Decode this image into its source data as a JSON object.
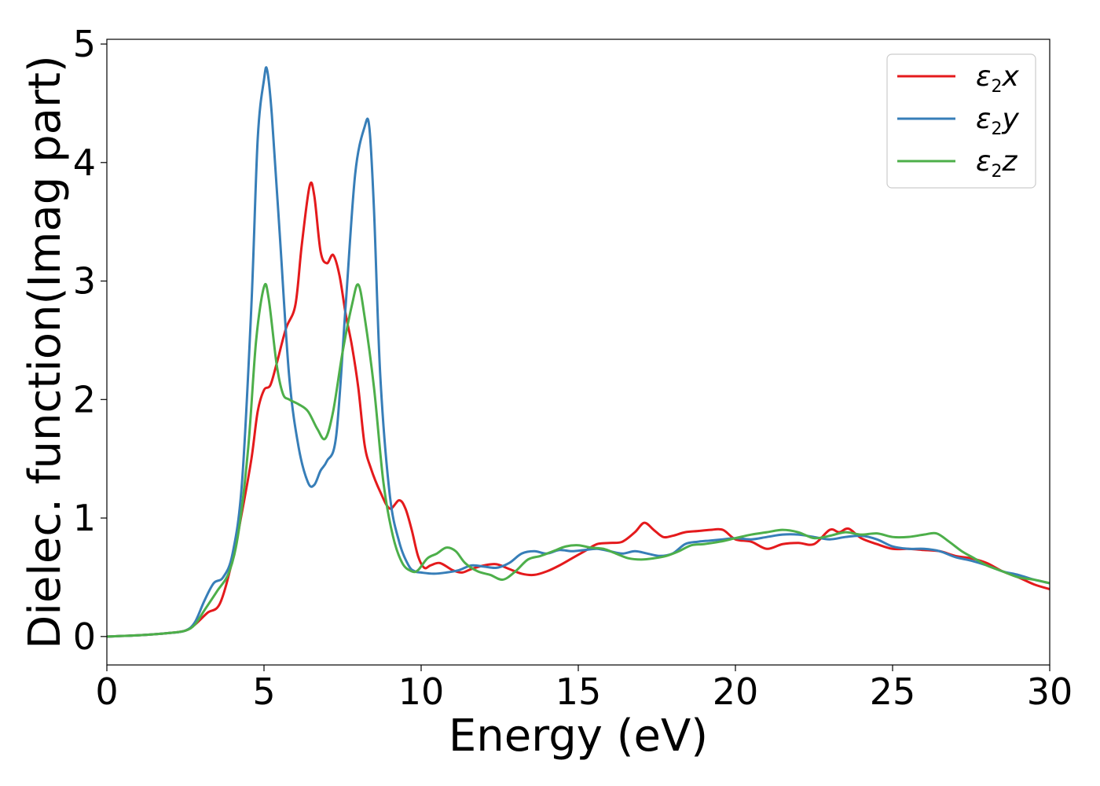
{
  "chart_data": {
    "type": "line",
    "title": "",
    "xlabel": "Energy (eV)",
    "ylabel": "Dielec. function(Imag part)",
    "xlim": [
      0,
      30
    ],
    "ylim": [
      -0.24,
      5.04
    ],
    "xticks": [
      0,
      5,
      10,
      15,
      20,
      25,
      30
    ],
    "yticks": [
      0,
      1,
      2,
      3,
      4,
      5
    ],
    "grid": false,
    "legend_position": "top-right",
    "series": [
      {
        "name": "ε2x",
        "legend_base": "ε",
        "legend_sub": "2",
        "legend_tail": "x",
        "color": "#e41a1c",
        "x": [
          0,
          1,
          2,
          2.5,
          2.8,
          3.2,
          3.6,
          4.0,
          4.3,
          4.6,
          4.8,
          5.0,
          5.2,
          5.4,
          5.7,
          6.0,
          6.2,
          6.45,
          6.6,
          6.8,
          7.0,
          7.2,
          7.4,
          7.6,
          7.8,
          8.0,
          8.2,
          8.4,
          8.7,
          9.0,
          9.3,
          9.5,
          9.7,
          9.9,
          10.1,
          10.3,
          10.6,
          11.0,
          11.3,
          11.6,
          12.0,
          12.4,
          12.8,
          13.2,
          13.6,
          14.0,
          14.4,
          14.8,
          15.2,
          15.6,
          16.0,
          16.4,
          16.8,
          17.1,
          17.4,
          17.7,
          18.0,
          18.4,
          18.8,
          19.2,
          19.6,
          20.0,
          20.5,
          21.0,
          21.5,
          22.0,
          22.5,
          23.0,
          23.3,
          23.6,
          24.0,
          24.5,
          25.0,
          25.5,
          26.0,
          26.5,
          27.0,
          27.5,
          28.0,
          28.5,
          29.0,
          29.5,
          30.0
        ],
        "y": [
          0.0,
          0.01,
          0.03,
          0.05,
          0.1,
          0.2,
          0.28,
          0.65,
          1.05,
          1.5,
          1.9,
          2.08,
          2.12,
          2.3,
          2.6,
          2.8,
          3.3,
          3.8,
          3.72,
          3.25,
          3.15,
          3.22,
          3.05,
          2.72,
          2.45,
          2.1,
          1.62,
          1.42,
          1.22,
          1.08,
          1.15,
          1.08,
          0.9,
          0.68,
          0.58,
          0.6,
          0.62,
          0.56,
          0.54,
          0.57,
          0.6,
          0.61,
          0.57,
          0.53,
          0.52,
          0.55,
          0.6,
          0.66,
          0.72,
          0.78,
          0.79,
          0.8,
          0.88,
          0.96,
          0.9,
          0.84,
          0.85,
          0.88,
          0.89,
          0.9,
          0.9,
          0.82,
          0.8,
          0.74,
          0.78,
          0.79,
          0.78,
          0.9,
          0.88,
          0.91,
          0.83,
          0.78,
          0.74,
          0.74,
          0.73,
          0.72,
          0.68,
          0.66,
          0.62,
          0.55,
          0.5,
          0.44,
          0.4
        ]
      },
      {
        "name": "ε2y",
        "legend_base": "ε",
        "legend_sub": "2",
        "legend_tail": "y",
        "color": "#377eb8",
        "x": [
          0,
          1,
          2,
          2.5,
          2.8,
          3.1,
          3.4,
          3.7,
          4.0,
          4.3,
          4.6,
          4.8,
          5.0,
          5.1,
          5.25,
          5.5,
          5.8,
          6.1,
          6.4,
          6.6,
          6.8,
          7.0,
          7.3,
          7.6,
          7.9,
          8.2,
          8.35,
          8.5,
          8.7,
          9.0,
          9.3,
          9.6,
          9.8,
          10.0,
          10.4,
          10.8,
          11.2,
          11.6,
          12.0,
          12.4,
          12.8,
          13.2,
          13.6,
          14.0,
          14.4,
          14.8,
          15.2,
          15.6,
          16.0,
          16.4,
          16.8,
          17.2,
          17.6,
          18.0,
          18.4,
          18.8,
          19.2,
          19.6,
          20.0,
          20.5,
          21.0,
          21.5,
          22.0,
          22.5,
          23.0,
          23.5,
          24.0,
          24.5,
          25.0,
          25.5,
          26.0,
          26.5,
          27.0,
          27.5,
          28.0,
          28.5,
          29.0,
          29.5,
          30.0
        ],
        "y": [
          0.0,
          0.01,
          0.03,
          0.05,
          0.12,
          0.3,
          0.45,
          0.5,
          0.7,
          1.3,
          2.8,
          4.2,
          4.7,
          4.78,
          4.4,
          3.4,
          2.2,
          1.6,
          1.3,
          1.28,
          1.4,
          1.48,
          1.7,
          2.8,
          3.9,
          4.3,
          4.3,
          3.6,
          2.2,
          1.2,
          0.8,
          0.6,
          0.55,
          0.54,
          0.53,
          0.54,
          0.56,
          0.6,
          0.59,
          0.58,
          0.62,
          0.7,
          0.72,
          0.7,
          0.73,
          0.72,
          0.73,
          0.74,
          0.72,
          0.7,
          0.72,
          0.7,
          0.68,
          0.7,
          0.78,
          0.8,
          0.81,
          0.82,
          0.83,
          0.82,
          0.84,
          0.86,
          0.86,
          0.84,
          0.82,
          0.84,
          0.85,
          0.82,
          0.76,
          0.74,
          0.74,
          0.72,
          0.67,
          0.64,
          0.6,
          0.55,
          0.52,
          0.48,
          0.45
        ]
      },
      {
        "name": "ε2z",
        "legend_base": "ε",
        "legend_sub": "2",
        "legend_tail": "z",
        "color": "#4daf4a",
        "x": [
          0,
          1,
          2,
          2.5,
          2.8,
          3.1,
          3.5,
          3.9,
          4.2,
          4.5,
          4.75,
          5.0,
          5.15,
          5.4,
          5.6,
          5.8,
          6.1,
          6.4,
          6.7,
          6.95,
          7.2,
          7.5,
          7.8,
          8.0,
          8.2,
          8.5,
          8.8,
          9.1,
          9.4,
          9.7,
          9.9,
          10.2,
          10.5,
          10.8,
          11.1,
          11.4,
          11.8,
          12.2,
          12.6,
          13.0,
          13.4,
          13.8,
          14.2,
          14.6,
          15.0,
          15.4,
          15.8,
          16.2,
          16.6,
          17.0,
          17.4,
          17.8,
          18.2,
          18.6,
          19.0,
          19.5,
          20.0,
          20.5,
          21.0,
          21.5,
          22.0,
          22.5,
          23.0,
          23.5,
          24.0,
          24.5,
          25.0,
          25.5,
          26.0,
          26.4,
          26.8,
          27.2,
          27.6,
          28.0,
          28.5,
          29.0,
          29.5,
          30.0
        ],
        "y": [
          0.0,
          0.01,
          0.03,
          0.05,
          0.1,
          0.22,
          0.38,
          0.55,
          0.9,
          1.6,
          2.5,
          2.95,
          2.85,
          2.3,
          2.05,
          2.0,
          1.96,
          1.9,
          1.75,
          1.67,
          1.9,
          2.4,
          2.8,
          2.97,
          2.7,
          2.1,
          1.3,
          0.85,
          0.62,
          0.55,
          0.56,
          0.66,
          0.7,
          0.75,
          0.72,
          0.62,
          0.55,
          0.52,
          0.48,
          0.55,
          0.65,
          0.68,
          0.72,
          0.76,
          0.77,
          0.75,
          0.74,
          0.7,
          0.66,
          0.65,
          0.66,
          0.68,
          0.72,
          0.77,
          0.78,
          0.8,
          0.83,
          0.86,
          0.88,
          0.9,
          0.88,
          0.83,
          0.85,
          0.88,
          0.86,
          0.87,
          0.84,
          0.84,
          0.86,
          0.87,
          0.8,
          0.72,
          0.66,
          0.6,
          0.55,
          0.5,
          0.48,
          0.45
        ]
      }
    ]
  }
}
